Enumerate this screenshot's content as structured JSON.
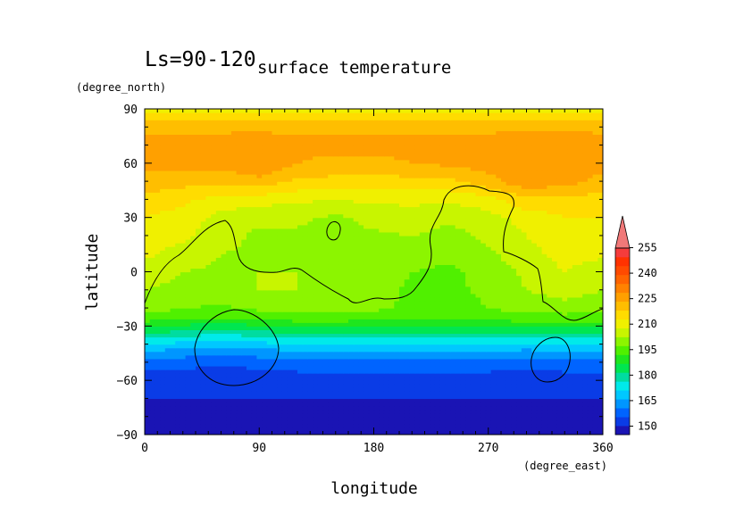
{
  "chart_data": {
    "type": "heatmap",
    "title": "surface temperature",
    "subtitle": "Ls=90-120",
    "xlabel": "longitude",
    "ylabel": "latitude",
    "x_units": "(degree_east)",
    "y_units": "(degree_north)",
    "xlim": [
      0,
      360
    ],
    "ylim": [
      -90,
      90
    ],
    "x_ticks": [
      0,
      90,
      180,
      270,
      360
    ],
    "y_ticks": [
      -90,
      -60,
      -30,
      0,
      30,
      60,
      90
    ],
    "x_tick_labels": [
      "0",
      "90",
      "180",
      "270",
      "360"
    ],
    "y_tick_labels": [
      "−90",
      "−60",
      "−30",
      "0",
      "30",
      "60",
      "90"
    ],
    "grid": false,
    "legend": "right",
    "colorbar": {
      "levels": [
        145,
        150,
        155,
        160,
        165,
        170,
        175,
        180,
        185,
        190,
        195,
        200,
        205,
        210,
        215,
        220,
        225,
        230,
        235,
        240,
        245,
        250,
        255,
        260
      ],
      "tick_values": [
        150,
        165,
        180,
        195,
        210,
        225,
        240,
        255
      ],
      "tick_labels": [
        "150",
        "165",
        "180",
        "195",
        "210",
        "225",
        "240",
        "255"
      ],
      "colors": [
        "#1a14b4",
        "#0a3ce6",
        "#0064ff",
        "#0096ff",
        "#00c8ff",
        "#00eaea",
        "#00dca0",
        "#00e650",
        "#1ee61e",
        "#50f000",
        "#8cf500",
        "#c8f500",
        "#f0f000",
        "#ffdc00",
        "#ffbe00",
        "#ffa000",
        "#ff8200",
        "#ff6400",
        "#ff4a00",
        "#ff3200",
        "#f53c3c",
        "#f07878"
      ],
      "extend": "max"
    },
    "lat_grid": [
      -90,
      -80,
      -70,
      -60,
      -50,
      -45,
      -40,
      -35,
      -30,
      -25,
      -20,
      -10,
      0,
      10,
      20,
      30,
      40,
      50,
      60,
      70,
      80,
      90
    ],
    "lon_grid": [
      0,
      30,
      60,
      90,
      120,
      150,
      180,
      210,
      240,
      270,
      300,
      330,
      360
    ],
    "values": [
      [
        147,
        147,
        147,
        147,
        147,
        147,
        146,
        147,
        147,
        147,
        147,
        147,
        147
      ],
      [
        148,
        148,
        148,
        148,
        148,
        148,
        147,
        147,
        148,
        148,
        148,
        148,
        148
      ],
      [
        150,
        150,
        150,
        150,
        150,
        150,
        150,
        150,
        150,
        150,
        150,
        150,
        150
      ],
      [
        152,
        151,
        151,
        151,
        152,
        152,
        152,
        152,
        152,
        152,
        152,
        152,
        152
      ],
      [
        158,
        157,
        156,
        157,
        158,
        158,
        158,
        158,
        158,
        158,
        157,
        158,
        158
      ],
      [
        163,
        162,
        161,
        162,
        163,
        163,
        163,
        163,
        163,
        163,
        162,
        163,
        163
      ],
      [
        170,
        168,
        167,
        168,
        170,
        170,
        170,
        170,
        170,
        170,
        169,
        170,
        170
      ],
      [
        178,
        176,
        174,
        176,
        178,
        178,
        178,
        178,
        178,
        178,
        177,
        178,
        178
      ],
      [
        186,
        184,
        182,
        184,
        186,
        186,
        186,
        186,
        186,
        186,
        186,
        186,
        186
      ],
      [
        193,
        191,
        190,
        192,
        193,
        193,
        192,
        191,
        191,
        192,
        193,
        193,
        193
      ],
      [
        197,
        195,
        194,
        196,
        197,
        197,
        196,
        194,
        193,
        195,
        197,
        198,
        197
      ],
      [
        200,
        199,
        198,
        200,
        200,
        199,
        197,
        194,
        194,
        196,
        200,
        202,
        200
      ],
      [
        202,
        200,
        199,
        200,
        200,
        199,
        197,
        195,
        194,
        197,
        201,
        205,
        202
      ],
      [
        206,
        203,
        200,
        199,
        199,
        198,
        198,
        197,
        196,
        199,
        203,
        207,
        206
      ],
      [
        208,
        206,
        202,
        199,
        199,
        197,
        199,
        200,
        198,
        201,
        205,
        208,
        208
      ],
      [
        210,
        208,
        203,
        201,
        201,
        199,
        202,
        203,
        201,
        203,
        207,
        210,
        210
      ],
      [
        213,
        211,
        208,
        207,
        206,
        205,
        206,
        206,
        206,
        208,
        214,
        213,
        213
      ],
      [
        218,
        217,
        216,
        218,
        214,
        213,
        213,
        213,
        214,
        218,
        224,
        222,
        218
      ],
      [
        222,
        222,
        222,
        225,
        220,
        219,
        219,
        220,
        221,
        222,
        224,
        224,
        222
      ],
      [
        222,
        222,
        222,
        223,
        221,
        221,
        221,
        221,
        222,
        222,
        224,
        223,
        222
      ],
      [
        219,
        219,
        219,
        219,
        219,
        219,
        219,
        219,
        219,
        219,
        219,
        219,
        219
      ],
      [
        207,
        207,
        207,
        207,
        207,
        207,
        207,
        207,
        207,
        207,
        207,
        207,
        207
      ]
    ]
  }
}
